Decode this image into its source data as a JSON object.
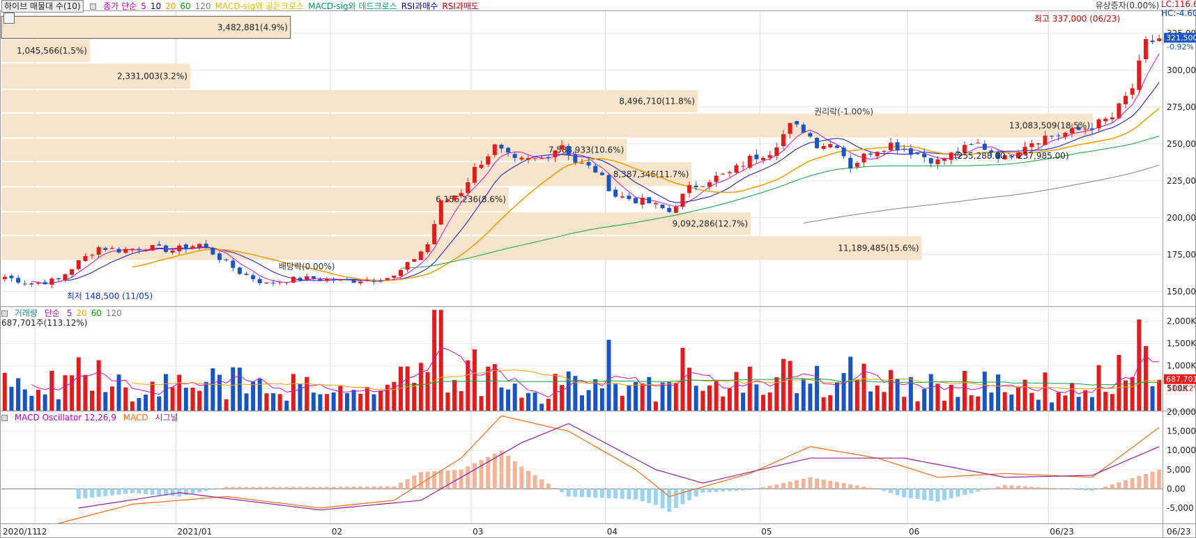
{
  "header": {
    "indicator_button": "하이브 매물대 수(10)",
    "legend_items": [
      {
        "label": "종가 단순",
        "color": "#c000c0"
      },
      {
        "label": "5",
        "color": "#c000c0"
      },
      {
        "label": "10",
        "color": "#0000c8"
      },
      {
        "label": "20",
        "color": "#f0a000"
      },
      {
        "label": "60",
        "color": "#00a000"
      },
      {
        "label": "120",
        "color": "#808080"
      },
      {
        "label": "MACD-sig와 골든크로스",
        "color": "#e0c000"
      },
      {
        "label": "MACD-sig와 데드크로스",
        "color": "#00a060"
      },
      {
        "label": "RSI과매수",
        "color": "#0000c8"
      },
      {
        "label": "RSI과매도",
        "color": "#c00000"
      }
    ],
    "lc_label": "LC:116.6",
    "hc_label": "HC:-4.60"
  },
  "price_panel": {
    "y_ticks": [
      "325,000",
      "300,000",
      "275,000",
      "250,000",
      "225,000",
      "200,000",
      "175,000",
      "150,000"
    ],
    "current_price": "321,500",
    "current_change": "-0.92%",
    "high_label": "최고 337,000 (06/23)",
    "low_label": "최저 148,500 (11/05)",
    "event_labels": [
      {
        "text": "배당락(0.00%)"
      },
      {
        "text": "권리락(-1.00%)"
      },
      {
        "text": "유상증자(0.00%)"
      }
    ],
    "range_label": "(255,288.00 ~ 237,985.00)"
  },
  "volume_profile": [
    {
      "label": "3,482,881(4.9%)",
      "p_low": 321000,
      "p_high": 337000,
      "width_pct": 4.9
    },
    {
      "label": "1,045,566(1.5%)",
      "p_low": 305000,
      "p_high": 321000,
      "width_pct": 1.5
    },
    {
      "label": "2,331,003(3.2%)",
      "p_low": 287000,
      "p_high": 305000,
      "width_pct": 3.2
    },
    {
      "label": "8,496,710(11.8%)",
      "p_low": 271000,
      "p_high": 287000,
      "width_pct": 11.8
    },
    {
      "label": "13,083,509(18.5%)",
      "p_low": 254000,
      "p_high": 271000,
      "width_pct": 18.5
    },
    {
      "label": "7,588,933(10.6%)",
      "p_low": 238000,
      "p_high": 254000,
      "width_pct": 10.6
    },
    {
      "label": "8,387,346(11.7%)",
      "p_low": 221000,
      "p_high": 238000,
      "width_pct": 11.7
    },
    {
      "label": "6,156,236(8.6%)",
      "p_low": 204000,
      "p_high": 221000,
      "width_pct": 8.6
    },
    {
      "label": "9,092,286(12.7%)",
      "p_low": 188000,
      "p_high": 204000,
      "width_pct": 12.7
    },
    {
      "label": "11,189,485(15.6%)",
      "p_low": 171000,
      "p_high": 188000,
      "width_pct": 15.6
    }
  ],
  "volume_panel": {
    "title": "거래량",
    "ma_label": "단순",
    "ma_periods": [
      {
        "label": "5",
        "color": "#c000c0"
      },
      {
        "label": "20",
        "color": "#f0a000"
      },
      {
        "label": "60",
        "color": "#00a000"
      },
      {
        "label": "120",
        "color": "#808080"
      }
    ],
    "current_text": "687,701주(113.12%)",
    "y_ticks": [
      "2,000K",
      "1,500K",
      "1,000K",
      "500K"
    ],
    "badge_value": "687,701",
    "badge_pct": "113.12%"
  },
  "macd_panel": {
    "title_osc": "MACD Oscillator 12,26,9",
    "title_macd": "MACD",
    "title_signal": "시그널",
    "y_ticks": [
      "20,000",
      "15,000",
      "10,000",
      "5,000",
      "0.00",
      "-5,000"
    ]
  },
  "x_axis": {
    "labels": [
      "2020/11",
      "12",
      "2021/01",
      "02",
      "03",
      "04",
      "05",
      "06",
      "06/23"
    ]
  },
  "colors": {
    "up": "#e8191a",
    "down": "#1754c8",
    "ma5": "#d010d0",
    "ma10": "#1010c8",
    "ma20": "#f0a000",
    "ma60": "#10a040",
    "ma120": "#808080",
    "macd": "#ff6a10",
    "signal": "#9020a0",
    "osc_pos": "#f4b49a",
    "osc_neg": "#9ad4f0",
    "profile": "#f6e4cc"
  },
  "chart_data": {
    "type": "candlestick",
    "x_start": "2020-10-26",
    "x_end": "2021-06-23",
    "candles_daily": true,
    "price_ylim": [
      140000,
      340000
    ],
    "price_points": [
      [
        "2020-10-26",
        160000
      ],
      [
        "2020-10-30",
        155000
      ],
      [
        "2020-11-05",
        158000
      ],
      [
        "2020-11-10",
        170000
      ],
      [
        "2020-11-13",
        180000
      ],
      [
        "2020-11-18",
        178000
      ],
      [
        "2020-11-24",
        180000
      ],
      [
        "2020-11-30",
        178000
      ],
      [
        "2020-12-04",
        182000
      ],
      [
        "2020-12-08",
        176000
      ],
      [
        "2020-12-14",
        163000
      ],
      [
        "2020-12-18",
        155000
      ],
      [
        "2020-12-23",
        158000
      ],
      [
        "2020-12-29",
        159000
      ],
      [
        "2021-01-05",
        157000
      ],
      [
        "2021-01-08",
        158000
      ],
      [
        "2021-01-14",
        160000
      ],
      [
        "2021-01-18",
        168000
      ],
      [
        "2021-01-21",
        182000
      ],
      [
        "2021-01-25",
        210000
      ],
      [
        "2021-01-28",
        218000
      ],
      [
        "2021-02-01",
        233000
      ],
      [
        "2021-02-04",
        248000
      ],
      [
        "2021-02-09",
        238000
      ],
      [
        "2021-02-15",
        240000
      ],
      [
        "2021-02-18",
        250000
      ],
      [
        "2021-02-22",
        238000
      ],
      [
        "2021-02-25",
        232000
      ],
      [
        "2021-03-02",
        215000
      ],
      [
        "2021-03-05",
        212000
      ],
      [
        "2021-03-09",
        210000
      ],
      [
        "2021-03-12",
        204000
      ],
      [
        "2021-03-17",
        220000
      ],
      [
        "2021-03-22",
        226000
      ],
      [
        "2021-03-25",
        230000
      ],
      [
        "2021-03-30",
        240000
      ],
      [
        "2021-04-02",
        245000
      ],
      [
        "2021-04-07",
        262000
      ],
      [
        "2021-04-09",
        260000
      ],
      [
        "2021-04-13",
        250000
      ],
      [
        "2021-04-16",
        250000
      ],
      [
        "2021-04-20",
        235000
      ],
      [
        "2021-04-23",
        245000
      ],
      [
        "2021-04-28",
        250000
      ],
      [
        "2021-05-03",
        245000
      ],
      [
        "2021-05-07",
        238000
      ],
      [
        "2021-05-12",
        245000
      ],
      [
        "2021-05-17",
        250000
      ],
      [
        "2021-05-21",
        240000
      ],
      [
        "2021-05-26",
        250000
      ],
      [
        "2021-05-31",
        255000
      ],
      [
        "2021-06-04",
        258000
      ],
      [
        "2021-06-09",
        262000
      ],
      [
        "2021-06-14",
        268000
      ],
      [
        "2021-06-17",
        288000
      ],
      [
        "2021-06-21",
        318000
      ],
      [
        "2021-06-23",
        321500
      ]
    ],
    "volume_ylim": [
      0,
      2300000
    ],
    "macd_ylim": [
      -9000,
      20000
    ],
    "macd_points": [
      [
        "2020-11-05",
        -9000
      ],
      [
        "2020-11-20",
        -4000
      ],
      [
        "2020-12-10",
        -2000
      ],
      [
        "2020-12-30",
        -5000
      ],
      [
        "2021-01-14",
        -3000
      ],
      [
        "2021-01-28",
        8000
      ],
      [
        "2021-02-05",
        19000
      ],
      [
        "2021-02-20",
        15000
      ],
      [
        "2021-03-05",
        5000
      ],
      [
        "2021-03-12",
        -2000
      ],
      [
        "2021-03-30",
        4000
      ],
      [
        "2021-04-12",
        11000
      ],
      [
        "2021-04-26",
        8000
      ],
      [
        "2021-05-07",
        3000
      ],
      [
        "2021-05-21",
        4000
      ],
      [
        "2021-06-09",
        3000
      ],
      [
        "2021-06-23",
        16000
      ]
    ],
    "signal_points": [
      [
        "2020-11-10",
        -5000
      ],
      [
        "2020-12-01",
        -1000
      ],
      [
        "2020-12-30",
        -5500
      ],
      [
        "2021-01-20",
        -3000
      ],
      [
        "2021-02-10",
        12000
      ],
      [
        "2021-02-20",
        17000
      ],
      [
        "2021-03-10",
        5000
      ],
      [
        "2021-03-20",
        1500
      ],
      [
        "2021-04-12",
        8000
      ],
      [
        "2021-04-30",
        8000
      ],
      [
        "2021-05-21",
        3000
      ],
      [
        "2021-06-09",
        3500
      ],
      [
        "2021-06-23",
        11000
      ]
    ]
  }
}
